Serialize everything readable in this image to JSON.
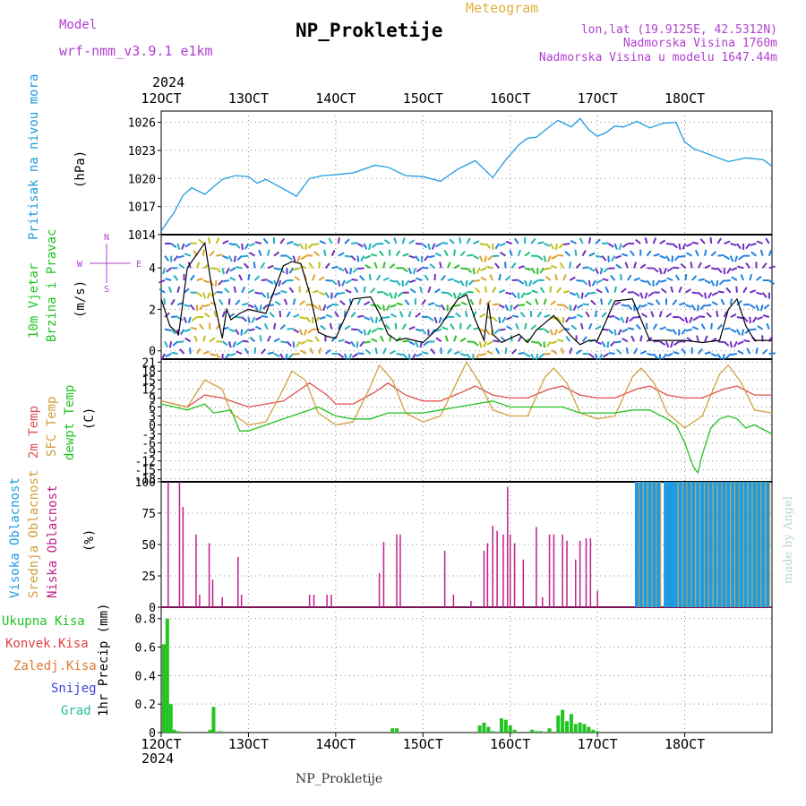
{
  "header": {
    "model_label": "Model",
    "model_name": "wrf-nmm_v3.9.1 e1km",
    "station": "NP_Prokletije",
    "meteogram": "Meteogram",
    "lonlat": "lon,lat (19.9125E, 42.5312N)",
    "altitude": "Nadmorska Visina 1760m",
    "model_altitude": "Nadmorska Visina u modelu 1647.44m",
    "footer_station": "NP_Prokletije",
    "credit": "made by Angel"
  },
  "colors": {
    "pressure": "#1e9be0",
    "wind_green": "#22c422",
    "temp_2m": "#e05050",
    "temp_sfc": "#d0a040",
    "dewpoint": "#22c422",
    "cloud_high": "#1e9be0",
    "cloud_mid": "#d0a040",
    "cloud_low": "#c0208a",
    "precip_total": "#22c422",
    "precip_conv": "#e04040",
    "precip_frozen": "#e07a30",
    "precip_snow": "#4040e0",
    "precip_grad": "#20c0a0",
    "header_purple": "#b040d0",
    "meteogram_orange": "#e0b040"
  },
  "time_axis": {
    "year_top": "2024",
    "year_bottom": "2024",
    "ticks": [
      "12OCT",
      "13OCT",
      "14OCT",
      "15OCT",
      "16OCT",
      "17OCT",
      "18OCT"
    ]
  },
  "chart_data": [
    {
      "type": "line",
      "panel": "pressure",
      "ylabel": "(hPa)",
      "side_label": "Pritisak na nivou mora",
      "yticks": [
        1014,
        1017,
        1020,
        1023,
        1026
      ],
      "ylim": [
        1014,
        1027.2
      ],
      "x_days": [
        0,
        0.15,
        0.25,
        0.35,
        0.5,
        0.7,
        0.85,
        1.0,
        1.1,
        1.2,
        1.4,
        1.55,
        1.7,
        1.85,
        2.0,
        2.2,
        2.45,
        2.6,
        2.8,
        3.0,
        3.2,
        3.4,
        3.6,
        3.8,
        3.95,
        4.1,
        4.2,
        4.3,
        4.5,
        4.55,
        4.7,
        4.8,
        4.9,
        5.0,
        5.1,
        5.2,
        5.3,
        5.45,
        5.6,
        5.75,
        5.9,
        5.95,
        6.0,
        6.1,
        6.3,
        6.5,
        6.7,
        6.9,
        7.0
      ],
      "values": [
        1014.4,
        1016.4,
        1018.2,
        1019.0,
        1018.3,
        1019.9,
        1020.3,
        1020.2,
        1019.5,
        1019.9,
        1018.9,
        1018.1,
        1020.0,
        1020.3,
        1020.4,
        1020.6,
        1021.4,
        1021.2,
        1020.3,
        1020.2,
        1019.7,
        1021.0,
        1021.9,
        1020.1,
        1022.0,
        1023.6,
        1024.3,
        1024.4,
        1025.9,
        1026.2,
        1025.5,
        1026.4,
        1025.2,
        1024.5,
        1024.9,
        1025.6,
        1025.5,
        1026.1,
        1025.4,
        1025.9,
        1026.0,
        1024.9,
        1023.9,
        1023.2,
        1022.5,
        1021.8,
        1022.2,
        1022.0,
        1021.3
      ]
    },
    {
      "type": "line",
      "panel": "wind",
      "ylabel": "(m/s)",
      "side_label_1": "10m Vjetar",
      "side_label_2": "Brzina i Pravac",
      "compass_w": "W",
      "compass_e": "E",
      "compass_n": "N",
      "compass_s": "S",
      "yticks": [
        0,
        2,
        4
      ],
      "ylim": [
        -0.4,
        5.6
      ],
      "x_days": [
        0,
        0.1,
        0.2,
        0.3,
        0.4,
        0.5,
        0.6,
        0.7,
        0.75,
        0.8,
        0.9,
        1.0,
        1.2,
        1.4,
        1.5,
        1.6,
        1.7,
        1.8,
        1.9,
        2.0,
        2.2,
        2.4,
        2.5,
        2.6,
        2.7,
        2.8,
        3.0,
        3.2,
        3.4,
        3.5,
        3.6,
        3.7,
        3.75,
        3.8,
        3.9,
        4.0,
        4.1,
        4.2,
        4.3,
        4.5,
        4.7,
        4.8,
        4.9,
        5.0,
        5.2,
        5.4,
        5.5,
        5.6,
        5.8,
        6.0,
        6.2,
        6.4,
        6.5,
        6.6,
        6.7,
        6.8,
        7.0
      ],
      "values": [
        2.5,
        1.2,
        0.8,
        4.0,
        4.6,
        5.2,
        2.5,
        0.6,
        2.0,
        1.5,
        1.8,
        2.0,
        1.8,
        4.1,
        4.3,
        4.2,
        2.8,
        0.9,
        0.7,
        0.6,
        2.5,
        2.6,
        1.8,
        0.8,
        0.5,
        0.6,
        0.4,
        1.2,
        2.5,
        2.7,
        1.5,
        0.5,
        2.3,
        0.8,
        0.4,
        0.6,
        0.8,
        0.4,
        1.0,
        1.7,
        0.7,
        0.3,
        0.5,
        0.5,
        2.4,
        2.5,
        1.5,
        0.5,
        0.5,
        0.5,
        0.4,
        0.5,
        2.0,
        2.5,
        1.2,
        0.5,
        0.5
      ]
    },
    {
      "type": "line",
      "panel": "temperature",
      "ylabel": "(C)",
      "side_label_1": "2m Temp",
      "side_label_2": "SFC Temp",
      "side_label_3": "dewpt Temp",
      "yticks": [
        -18,
        -15,
        -12,
        -9,
        -6,
        -3,
        0,
        3,
        6,
        9,
        12,
        15,
        18,
        21
      ],
      "ylim": [
        -19,
        22
      ],
      "series": [
        {
          "key": "t2m",
          "x_days": [
            0,
            0.3,
            0.5,
            0.7,
            0.9,
            1.0,
            1.2,
            1.4,
            1.55,
            1.7,
            1.9,
            2.0,
            2.2,
            2.45,
            2.6,
            2.8,
            3.0,
            3.2,
            3.45,
            3.6,
            3.8,
            4.0,
            4.2,
            4.45,
            4.6,
            4.8,
            5.0,
            5.2,
            5.45,
            5.6,
            5.8,
            6.0,
            6.2,
            6.45,
            6.6,
            6.8,
            7.0
          ],
          "values": [
            8,
            6,
            10,
            9,
            7,
            6,
            7,
            8,
            11,
            14,
            10,
            7,
            7,
            11,
            14,
            10,
            8,
            8,
            11,
            13,
            10,
            9,
            9,
            12,
            13,
            10,
            9,
            9,
            12,
            13,
            10,
            9,
            9,
            12,
            13,
            10,
            10
          ]
        },
        {
          "key": "tsfc",
          "x_days": [
            0,
            0.3,
            0.5,
            0.7,
            0.8,
            1.0,
            1.2,
            1.4,
            1.5,
            1.65,
            1.8,
            2.0,
            2.2,
            2.4,
            2.5,
            2.65,
            2.8,
            3.0,
            3.2,
            3.4,
            3.5,
            3.65,
            3.8,
            4.0,
            4.2,
            4.4,
            4.5,
            4.65,
            4.8,
            5.0,
            5.2,
            5.4,
            5.5,
            5.65,
            5.8,
            6.0,
            6.2,
            6.4,
            6.5,
            6.65,
            6.8,
            7.0
          ],
          "values": [
            8,
            6,
            15,
            12,
            4,
            0,
            1,
            12,
            18,
            15,
            4,
            0,
            1,
            13,
            20,
            15,
            4,
            1,
            3,
            15,
            21,
            14,
            5,
            3,
            3,
            16,
            19,
            14,
            4,
            2,
            3,
            16,
            19,
            14,
            4,
            -1,
            3,
            17,
            20,
            14,
            5,
            4
          ]
        },
        {
          "key": "dewpt",
          "x_days": [
            0,
            0.3,
            0.5,
            0.6,
            0.8,
            0.9,
            1.0,
            1.2,
            1.4,
            1.6,
            1.8,
            2.0,
            2.2,
            2.4,
            2.6,
            2.8,
            3.0,
            3.2,
            3.4,
            3.6,
            3.8,
            4.0,
            4.2,
            4.4,
            4.6,
            4.8,
            5.0,
            5.2,
            5.4,
            5.6,
            5.8,
            5.9,
            6.0,
            6.1,
            6.15,
            6.2,
            6.3,
            6.4,
            6.5,
            6.6,
            6.7,
            6.8,
            7.0
          ],
          "values": [
            7,
            5,
            7,
            4,
            5,
            -2,
            -2,
            0,
            2,
            4,
            6,
            3,
            2,
            2,
            4,
            4,
            4,
            5,
            6,
            7,
            8,
            6,
            6,
            6,
            6,
            4,
            4,
            4,
            5,
            5,
            2,
            0,
            -6,
            -14,
            -16,
            -10,
            -1,
            2,
            3,
            2,
            -1,
            0,
            -3
          ]
        }
      ]
    },
    {
      "type": "bar",
      "panel": "clouds",
      "ylabel": "(%)",
      "side_label_1": "Visoka Oblacnost",
      "side_label_2": "Srednja Oblacnost",
      "side_label_3": "Niska Oblacnost",
      "yticks": [
        0,
        25,
        50,
        75,
        100
      ],
      "ylim": [
        0,
        100
      ],
      "low_x_days": [
        0.08,
        0.21,
        0.25,
        0.4,
        0.44,
        0.55,
        0.59,
        0.7,
        0.88,
        0.92,
        1.7,
        1.75,
        1.9,
        1.95,
        2.5,
        2.55,
        2.7,
        2.74,
        3.25,
        3.35,
        3.55,
        3.7,
        3.74,
        3.8,
        3.85,
        3.92,
        3.97,
        4.0,
        4.05,
        4.15,
        4.3,
        4.37,
        4.45,
        4.5,
        4.6,
        4.65,
        4.75,
        4.8,
        4.87,
        4.92,
        5.0
      ],
      "low_values": [
        100,
        100,
        80,
        58,
        10,
        51,
        22,
        8,
        40,
        10,
        10,
        10,
        10,
        10,
        27,
        52,
        58,
        58,
        45,
        10,
        5,
        45,
        51,
        65,
        61,
        58,
        96,
        58,
        51,
        38,
        64,
        8,
        58,
        58,
        58,
        53,
        38,
        53,
        55,
        55,
        13
      ],
      "high_x_days": [
        5.45,
        5.5,
        5.55,
        5.6,
        5.65,
        5.7,
        5.78,
        5.82,
        5.86,
        5.9,
        5.95,
        6.0,
        6.05,
        6.1,
        6.15,
        6.2,
        6.25,
        6.3,
        6.35,
        6.4,
        6.45,
        6.5,
        6.55,
        6.6,
        6.65,
        6.7,
        6.75,
        6.8,
        6.85,
        6.9,
        6.95
      ],
      "high_values": [
        100,
        100,
        100,
        100,
        100,
        100,
        100,
        100,
        100,
        100,
        100,
        100,
        100,
        100,
        100,
        100,
        100,
        100,
        100,
        100,
        100,
        100,
        100,
        100,
        100,
        100,
        100,
        100,
        100,
        100,
        100
      ]
    },
    {
      "type": "bar",
      "panel": "precip",
      "ylabel": "1hr Precip (mm)",
      "legend": [
        "Ukupna Kisa",
        "Konvek.Kisa",
        "Zaledj.Kisa",
        "Snijeg",
        "Grad"
      ],
      "yticks": [
        0,
        0.2,
        0.4,
        0.6,
        0.8
      ],
      "ylim": [
        0,
        0.88
      ],
      "x_days": [
        0.03,
        0.07,
        0.11,
        0.15,
        0.2,
        0.56,
        0.6,
        0.68,
        2.65,
        2.7,
        3.65,
        3.7,
        3.75,
        3.8,
        3.9,
        3.95,
        4.0,
        4.05,
        4.25,
        4.3,
        4.35,
        4.45,
        4.55,
        4.6,
        4.65,
        4.7,
        4.75,
        4.8,
        4.85,
        4.9,
        4.95,
        5.0
      ],
      "values": [
        0.62,
        0.8,
        0.2,
        0.02,
        0.01,
        0.02,
        0.18,
        0.01,
        0.03,
        0.03,
        0.05,
        0.07,
        0.04,
        0.01,
        0.1,
        0.09,
        0.05,
        0.02,
        0.02,
        0.01,
        0.01,
        0.03,
        0.12,
        0.16,
        0.08,
        0.13,
        0.06,
        0.07,
        0.06,
        0.04,
        0.02,
        0.01
      ]
    }
  ]
}
